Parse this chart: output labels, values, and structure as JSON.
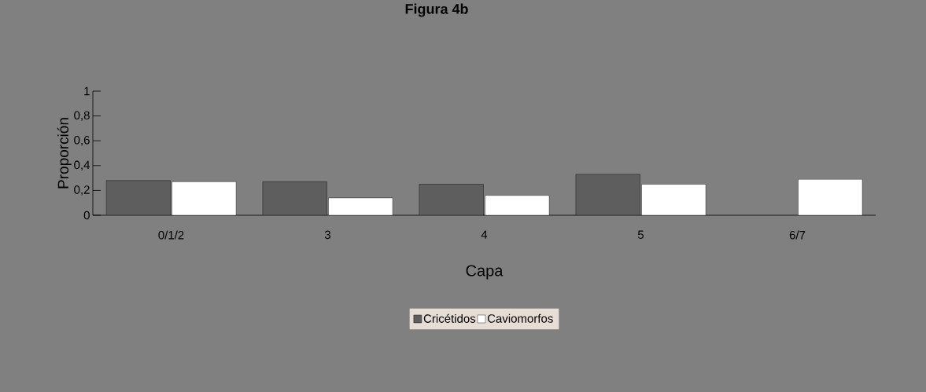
{
  "chart_data": {
    "type": "bar",
    "title": "Figura 4b",
    "xlabel": "Capa",
    "ylabel": "Proporción",
    "categories": [
      "0/1/2",
      "3",
      "4",
      "5",
      "6/7"
    ],
    "series": [
      {
        "name": "Cricétidos",
        "color": "#5e5e5e",
        "values": [
          0.28,
          0.27,
          0.25,
          0.33,
          null
        ]
      },
      {
        "name": "Caviomorfos",
        "color": "#ffffff",
        "values": [
          0.27,
          0.14,
          0.16,
          0.25,
          0.29
        ]
      }
    ],
    "ylim": [
      0,
      1
    ],
    "yticks": [
      0,
      {
        "value": 0.2,
        "label": "0,2"
      },
      {
        "value": 0.4,
        "label": "0,4"
      },
      {
        "value": 0.6,
        "label": "0,6"
      },
      {
        "value": 0.8,
        "label": "0,8"
      },
      1
    ],
    "grid": false,
    "legend": "bottom"
  }
}
